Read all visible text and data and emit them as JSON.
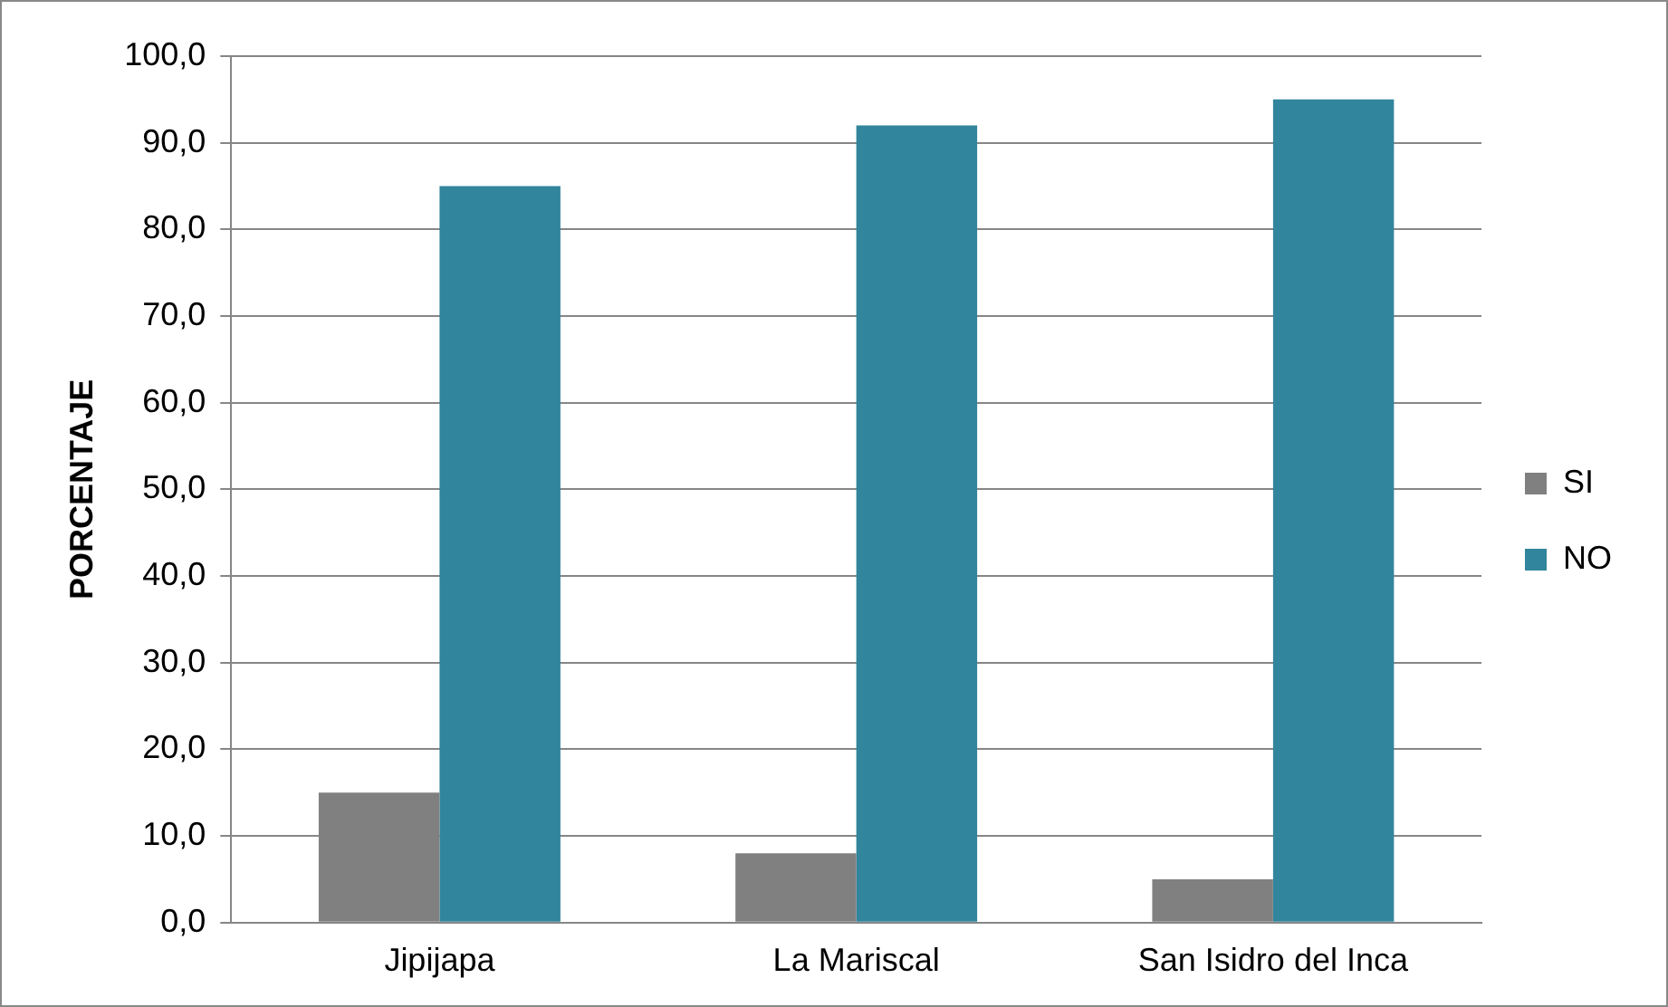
{
  "chart_data": {
    "type": "bar",
    "ylabel": "PORCENTAJE",
    "categories": [
      "Jipijapa",
      "La Mariscal",
      "San Isidro del Inca"
    ],
    "series": [
      {
        "name": "SI",
        "color": "#808080",
        "values": [
          15,
          8,
          5
        ]
      },
      {
        "name": "NO",
        "color": "#31859c",
        "values": [
          85,
          92,
          95
        ]
      }
    ],
    "ylim": [
      0,
      100
    ],
    "yticks": [
      {
        "value": 0,
        "label": "0,0"
      },
      {
        "value": 10,
        "label": "10,0"
      },
      {
        "value": 20,
        "label": "20,0"
      },
      {
        "value": 30,
        "label": "30,0"
      },
      {
        "value": 40,
        "label": "40,0"
      },
      {
        "value": 50,
        "label": "50,0"
      },
      {
        "value": 60,
        "label": "60,0"
      },
      {
        "value": 70,
        "label": "70,0"
      },
      {
        "value": 80,
        "label": "80,0"
      },
      {
        "value": 90,
        "label": "90,0"
      },
      {
        "value": 100,
        "label": "100,0"
      }
    ],
    "grid": "y",
    "legend": "right"
  }
}
